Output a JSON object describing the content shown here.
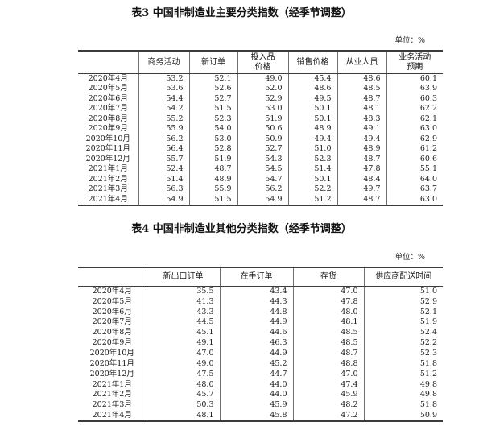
{
  "table3": {
    "title": "表3 中国非制造业主要分类指数（经季节调整）",
    "unit_label": "单位：%",
    "columns": [
      "",
      "商务活动",
      "新订单",
      "投入品\n价格",
      "销售价格",
      "从业人员",
      "业务活动\n预期"
    ],
    "rows": [
      [
        "2020年4月",
        "53.2",
        "52.1",
        "49.0",
        "45.4",
        "48.6",
        "60.1"
      ],
      [
        "2020年5月",
        "53.6",
        "52.6",
        "52.0",
        "48.6",
        "48.5",
        "63.9"
      ],
      [
        "2020年6月",
        "54.4",
        "52.7",
        "52.9",
        "49.5",
        "48.7",
        "60.3"
      ],
      [
        "2020年7月",
        "54.2",
        "51.5",
        "53.0",
        "50.1",
        "48.1",
        "62.2"
      ],
      [
        "2020年8月",
        "55.2",
        "52.3",
        "51.9",
        "50.1",
        "48.3",
        "62.1"
      ],
      [
        "2020年9月",
        "55.9",
        "54.0",
        "50.6",
        "48.9",
        "49.1",
        "63.0"
      ],
      [
        "2020年10月",
        "56.2",
        "53.0",
        "50.9",
        "49.4",
        "49.4",
        "62.9"
      ],
      [
        "2020年11月",
        "56.4",
        "52.8",
        "52.7",
        "51.0",
        "48.9",
        "61.2"
      ],
      [
        "2020年12月",
        "55.7",
        "51.9",
        "54.3",
        "52.3",
        "48.7",
        "60.6"
      ],
      [
        "2021年1月",
        "52.4",
        "48.7",
        "54.5",
        "51.4",
        "47.8",
        "55.1"
      ],
      [
        "2021年2月",
        "51.4",
        "48.9",
        "54.7",
        "50.1",
        "48.4",
        "64.0"
      ],
      [
        "2021年3月",
        "56.3",
        "55.9",
        "56.2",
        "52.2",
        "49.7",
        "63.7"
      ],
      [
        "2021年4月",
        "54.9",
        "51.5",
        "54.9",
        "51.2",
        "48.7",
        "63.0"
      ]
    ]
  },
  "table4": {
    "title": "表4 中国非制造业其他分类指数（经季节调整）",
    "unit_label": "单位：%",
    "columns": [
      "",
      "新出口订单",
      "在手订单",
      "存货",
      "供应商配送时间"
    ],
    "rows": [
      [
        "2020年4月",
        "35.5",
        "43.4",
        "47.0",
        "51.0"
      ],
      [
        "2020年5月",
        "41.3",
        "44.3",
        "47.8",
        "52.9"
      ],
      [
        "2020年6月",
        "43.3",
        "44.8",
        "48.0",
        "52.1"
      ],
      [
        "2020年7月",
        "44.5",
        "44.9",
        "48.1",
        "51.9"
      ],
      [
        "2020年8月",
        "45.1",
        "44.6",
        "48.5",
        "52.4"
      ],
      [
        "2020年9月",
        "49.1",
        "46.3",
        "48.5",
        "52.2"
      ],
      [
        "2020年10月",
        "47.0",
        "44.9",
        "48.7",
        "52.3"
      ],
      [
        "2020年11月",
        "49.0",
        "45.2",
        "48.8",
        "51.8"
      ],
      [
        "2020年12月",
        "47.5",
        "44.7",
        "47.0",
        "51.2"
      ],
      [
        "2021年1月",
        "48.0",
        "44.0",
        "47.4",
        "49.8"
      ],
      [
        "2021年2月",
        "45.7",
        "44.0",
        "45.9",
        "49.8"
      ],
      [
        "2021年3月",
        "50.3",
        "45.9",
        "48.2",
        "51.8"
      ],
      [
        "2021年4月",
        "48.1",
        "45.8",
        "47.2",
        "50.9"
      ]
    ]
  }
}
